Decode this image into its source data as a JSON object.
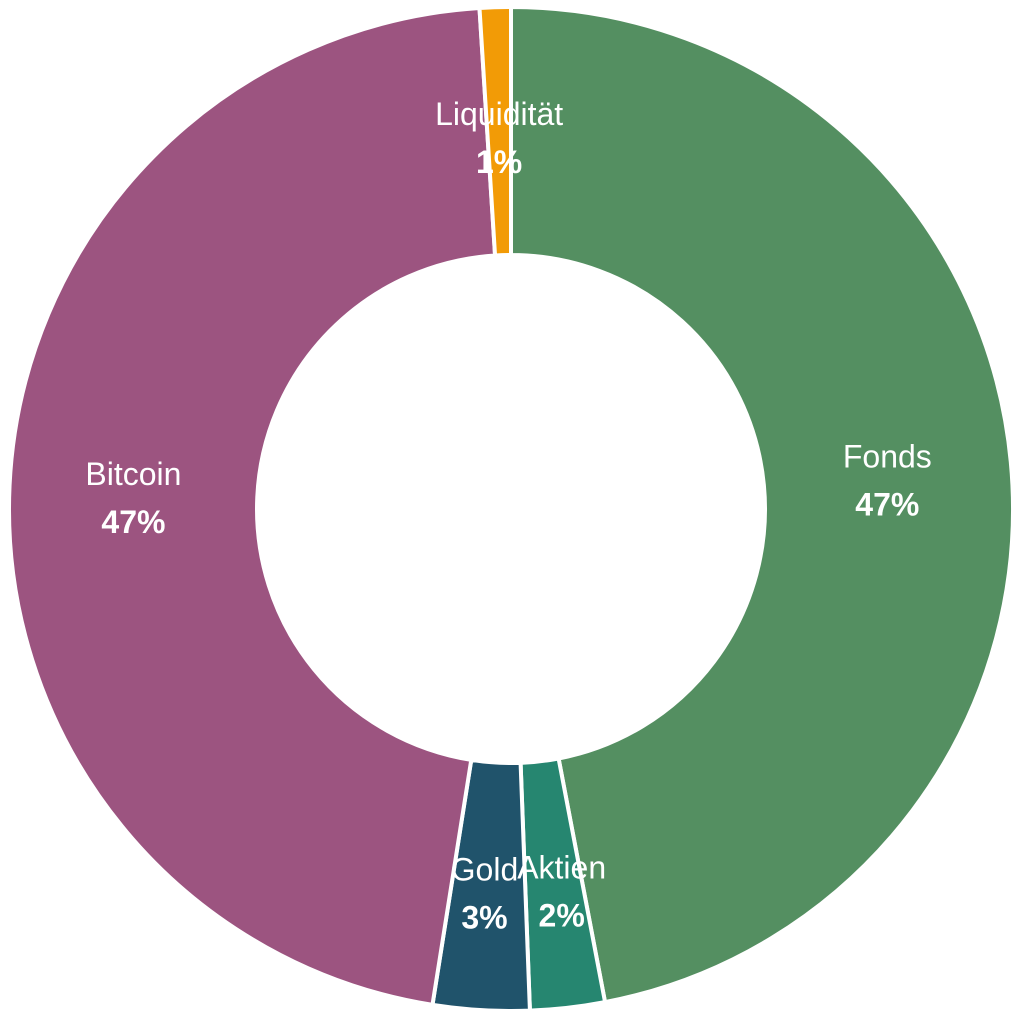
{
  "chart_data": {
    "type": "pie",
    "variant": "donut",
    "title": "",
    "slices": [
      {
        "label": "Fonds",
        "value": 47,
        "value_label": "47%",
        "color": "#548F61"
      },
      {
        "label": "Aktien",
        "value": 2.4,
        "value_label": "2%",
        "color": "#268670"
      },
      {
        "label": "Gold",
        "value": 3.1,
        "value_label": "3%",
        "color": "#20536B"
      },
      {
        "label": "Bitcoin",
        "value": 46.5,
        "value_label": "47%",
        "color": "#9C5480"
      },
      {
        "label": "Liquidität",
        "value": 1,
        "value_label": "1%",
        "color": "#F29B06"
      }
    ],
    "start_angle_deg": 0,
    "direction": "clockwise",
    "legend": "none"
  }
}
